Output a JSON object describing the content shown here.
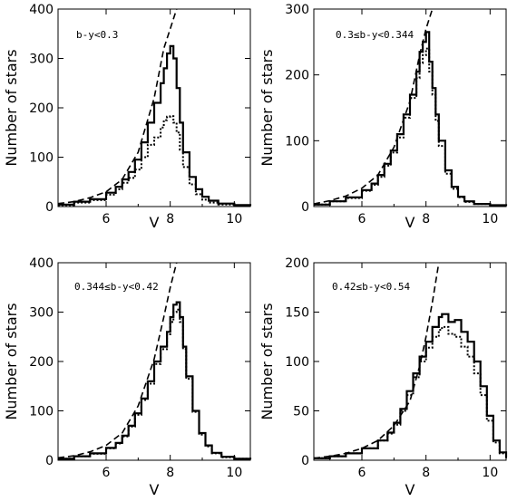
{
  "chart_data": [
    {
      "type": "line",
      "panel_label": "b-y<0.3",
      "xlabel": "V",
      "ylabel": "Number of stars",
      "xlim": [
        4.5,
        10.5
      ],
      "ylim": [
        0,
        400
      ],
      "xticks": [
        6,
        8,
        10
      ],
      "yticks": [
        0,
        100,
        200,
        300,
        400
      ],
      "xticklabels": [
        "6",
        "8",
        "10"
      ],
      "yticklabels": [
        "0",
        "100",
        "200",
        "300",
        "400"
      ],
      "series": [
        {
          "style": "solid",
          "x": [
            4.5,
            5.0,
            5.5,
            6.0,
            6.3,
            6.5,
            6.7,
            6.9,
            7.1,
            7.3,
            7.5,
            7.7,
            7.8,
            7.9,
            8.0,
            8.1,
            8.2,
            8.3,
            8.4,
            8.6,
            8.8,
            9.0,
            9.2,
            9.5,
            10.0,
            10.5
          ],
          "y": [
            4,
            10,
            15,
            28,
            40,
            55,
            70,
            95,
            130,
            170,
            210,
            250,
            280,
            310,
            325,
            300,
            240,
            170,
            110,
            60,
            35,
            20,
            12,
            6,
            3,
            2
          ]
        },
        {
          "style": "dotted",
          "x": [
            4.5,
            5.0,
            5.5,
            6.0,
            6.3,
            6.5,
            6.7,
            6.9,
            7.1,
            7.3,
            7.5,
            7.7,
            7.8,
            7.9,
            8.0,
            8.1,
            8.2,
            8.3,
            8.4,
            8.6,
            8.8,
            9.0,
            9.2,
            9.5,
            10.0,
            10.5
          ],
          "y": [
            3,
            8,
            13,
            24,
            35,
            48,
            58,
            75,
            100,
            125,
            140,
            160,
            175,
            182,
            183,
            170,
            150,
            115,
            80,
            45,
            25,
            14,
            8,
            4,
            2,
            1
          ]
        },
        {
          "style": "dashed",
          "x": [
            4.5,
            5.0,
            5.5,
            6.0,
            6.5,
            7.0,
            7.5,
            7.8,
            8.0,
            8.2
          ],
          "y": [
            6,
            10,
            18,
            30,
            55,
            110,
            220,
            320,
            360,
            400
          ]
        }
      ]
    },
    {
      "type": "line",
      "panel_label": "0.3≤b-y<0.344",
      "xlabel": "V",
      "ylabel": "Number of stars",
      "xlim": [
        4.5,
        10.5
      ],
      "ylim": [
        0,
        300
      ],
      "xticks": [
        6,
        8,
        10
      ],
      "yticks": [
        0,
        100,
        200,
        300
      ],
      "xticklabels": [
        "6",
        "8",
        "10"
      ],
      "yticklabels": [
        "0",
        "100",
        "200",
        "300"
      ],
      "series": [
        {
          "style": "solid",
          "x": [
            4.5,
            5.0,
            5.5,
            6.0,
            6.3,
            6.5,
            6.7,
            6.9,
            7.1,
            7.3,
            7.5,
            7.7,
            7.8,
            7.9,
            8.0,
            8.1,
            8.2,
            8.3,
            8.4,
            8.6,
            8.8,
            9.0,
            9.2,
            9.5,
            10.0,
            10.5
          ],
          "y": [
            3,
            8,
            14,
            25,
            35,
            48,
            65,
            85,
            110,
            140,
            170,
            205,
            235,
            250,
            265,
            220,
            180,
            140,
            100,
            55,
            30,
            15,
            8,
            4,
            2,
            1
          ]
        },
        {
          "style": "dotted",
          "x": [
            4.5,
            5.0,
            5.5,
            6.0,
            6.3,
            6.5,
            6.7,
            6.9,
            7.1,
            7.3,
            7.5,
            7.7,
            7.8,
            7.9,
            8.0,
            8.1,
            8.2,
            8.3,
            8.4,
            8.6,
            8.8,
            9.0,
            9.2,
            9.5,
            10.0,
            10.5
          ],
          "y": [
            3,
            8,
            13,
            24,
            33,
            45,
            62,
            82,
            105,
            135,
            165,
            195,
            218,
            230,
            240,
            205,
            170,
            130,
            92,
            50,
            27,
            14,
            7,
            4,
            2,
            1
          ]
        },
        {
          "style": "dashed",
          "x": [
            4.5,
            5.0,
            5.5,
            6.0,
            6.5,
            7.0,
            7.5,
            7.8,
            8.0,
            8.2
          ],
          "y": [
            4,
            9,
            16,
            28,
            48,
            90,
            160,
            230,
            270,
            300
          ]
        }
      ]
    },
    {
      "type": "line",
      "panel_label": "0.344≤b-y<0.42",
      "xlabel": "V",
      "ylabel": "Number of stars",
      "xlim": [
        4.5,
        10.5
      ],
      "ylim": [
        0,
        400
      ],
      "xticks": [
        6,
        8,
        10
      ],
      "yticks": [
        0,
        100,
        200,
        300,
        400
      ],
      "xticklabels": [
        "6",
        "8",
        "10"
      ],
      "yticklabels": [
        "0",
        "100",
        "200",
        "300",
        "400"
      ],
      "series": [
        {
          "style": "solid",
          "x": [
            4.5,
            5.0,
            5.5,
            6.0,
            6.3,
            6.5,
            6.7,
            6.9,
            7.1,
            7.3,
            7.5,
            7.7,
            7.9,
            8.0,
            8.1,
            8.2,
            8.3,
            8.4,
            8.5,
            8.7,
            8.9,
            9.1,
            9.3,
            9.6,
            10.0,
            10.5
          ],
          "y": [
            3,
            8,
            14,
            25,
            35,
            50,
            70,
            95,
            125,
            160,
            200,
            230,
            260,
            290,
            315,
            320,
            290,
            230,
            170,
            100,
            55,
            30,
            15,
            7,
            3,
            2
          ]
        },
        {
          "style": "dotted",
          "x": [
            4.5,
            5.0,
            5.5,
            6.0,
            6.3,
            6.5,
            6.7,
            6.9,
            7.1,
            7.3,
            7.5,
            7.7,
            7.9,
            8.0,
            8.1,
            8.2,
            8.3,
            8.4,
            8.5,
            8.7,
            8.9,
            9.1,
            9.3,
            9.6,
            10.0,
            10.5
          ],
          "y": [
            3,
            8,
            13,
            24,
            34,
            48,
            68,
            92,
            122,
            155,
            195,
            225,
            255,
            280,
            300,
            305,
            280,
            225,
            165,
            98,
            52,
            28,
            14,
            6,
            3,
            1
          ]
        },
        {
          "style": "dashed",
          "x": [
            4.5,
            5.0,
            5.5,
            6.0,
            6.5,
            7.0,
            7.5,
            7.8,
            8.0,
            8.2
          ],
          "y": [
            5,
            9,
            17,
            30,
            55,
            110,
            205,
            290,
            350,
            400
          ]
        }
      ]
    },
    {
      "type": "line",
      "panel_label": "0.42≤b-y<0.54",
      "xlabel": "V",
      "ylabel": "Number of stars",
      "xlim": [
        4.5,
        10.5
      ],
      "ylim": [
        0,
        200
      ],
      "xticks": [
        6,
        8,
        10
      ],
      "yticks": [
        0,
        50,
        100,
        150,
        200
      ],
      "xticklabels": [
        "6",
        "8",
        "10"
      ],
      "yticklabels": [
        "0",
        "50",
        "100",
        "150",
        "200"
      ],
      "series": [
        {
          "style": "solid",
          "x": [
            4.5,
            5.0,
            5.5,
            6.0,
            6.5,
            6.8,
            7.0,
            7.2,
            7.4,
            7.6,
            7.8,
            8.0,
            8.2,
            8.4,
            8.5,
            8.7,
            8.9,
            9.1,
            9.3,
            9.5,
            9.7,
            9.9,
            10.1,
            10.3,
            10.5
          ],
          "y": [
            2,
            4,
            7,
            12,
            20,
            28,
            38,
            52,
            70,
            88,
            105,
            120,
            135,
            145,
            148,
            140,
            142,
            130,
            120,
            100,
            75,
            45,
            20,
            8,
            3
          ]
        },
        {
          "style": "dotted",
          "x": [
            4.5,
            5.0,
            5.5,
            6.0,
            6.5,
            6.8,
            7.0,
            7.2,
            7.4,
            7.6,
            7.8,
            8.0,
            8.2,
            8.4,
            8.5,
            8.7,
            8.9,
            9.1,
            9.3,
            9.5,
            9.7,
            9.9,
            10.1,
            10.3,
            10.5
          ],
          "y": [
            2,
            4,
            7,
            12,
            20,
            27,
            36,
            50,
            66,
            84,
            100,
            114,
            125,
            132,
            135,
            128,
            125,
            115,
            105,
            88,
            66,
            40,
            18,
            7,
            2
          ]
        },
        {
          "style": "dashed",
          "x": [
            4.5,
            5.0,
            5.5,
            6.0,
            6.5,
            7.0,
            7.5,
            7.8,
            8.0,
            8.2,
            8.4
          ],
          "y": [
            2,
            4,
            7,
            12,
            20,
            35,
            60,
            95,
            125,
            160,
            200
          ]
        }
      ]
    }
  ]
}
